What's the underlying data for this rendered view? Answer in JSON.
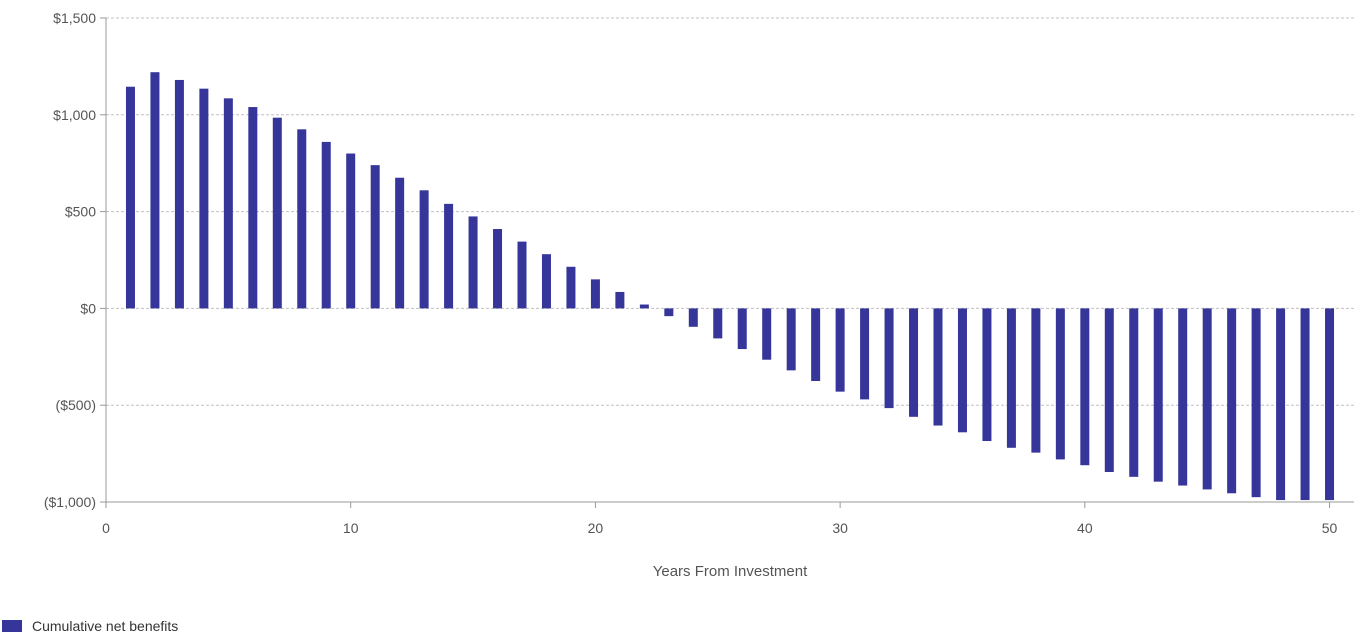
{
  "chart_data": {
    "type": "bar",
    "title": "",
    "xlabel": "Years From Investment",
    "ylabel": "",
    "xlim": [
      0,
      51
    ],
    "ylim": [
      -1000,
      1500
    ],
    "x_ticks": [
      0,
      10,
      20,
      30,
      40,
      50
    ],
    "x_tick_labels": [
      "0",
      "10",
      "20",
      "30",
      "40",
      "50"
    ],
    "y_ticks": [
      1500,
      1000,
      500,
      0,
      -500,
      -1000
    ],
    "y_tick_labels": [
      "$1,500",
      "$1,000",
      "$500",
      "$0",
      "($500)",
      "($1,000)"
    ],
    "grid": "horizontal dashed",
    "legend_position": "bottom-left",
    "colors": {
      "bar": "#35359a",
      "grid": "#c0c0c0",
      "axis": "#999999"
    },
    "x": [
      1,
      2,
      3,
      4,
      5,
      6,
      7,
      8,
      9,
      10,
      11,
      12,
      13,
      14,
      15,
      16,
      17,
      18,
      19,
      20,
      21,
      22,
      23,
      24,
      25,
      26,
      27,
      28,
      29,
      30,
      31,
      32,
      33,
      34,
      35,
      36,
      37,
      38,
      39,
      40,
      41,
      42,
      43,
      44,
      45,
      46,
      47,
      48,
      49,
      50
    ],
    "series": [
      {
        "name": "Cumulative net benefits",
        "values": [
          1145,
          1220,
          1180,
          1135,
          1085,
          1040,
          985,
          925,
          860,
          800,
          740,
          675,
          610,
          540,
          475,
          410,
          345,
          280,
          215,
          150,
          85,
          20,
          -40,
          -95,
          -155,
          -210,
          -265,
          -320,
          -375,
          -430,
          -470,
          -515,
          -560,
          -605,
          -640,
          -685,
          -720,
          -745,
          -780,
          -810,
          -845,
          -870,
          -895,
          -915,
          -935,
          -955,
          -975,
          -990,
          -990,
          -990
        ]
      }
    ]
  }
}
